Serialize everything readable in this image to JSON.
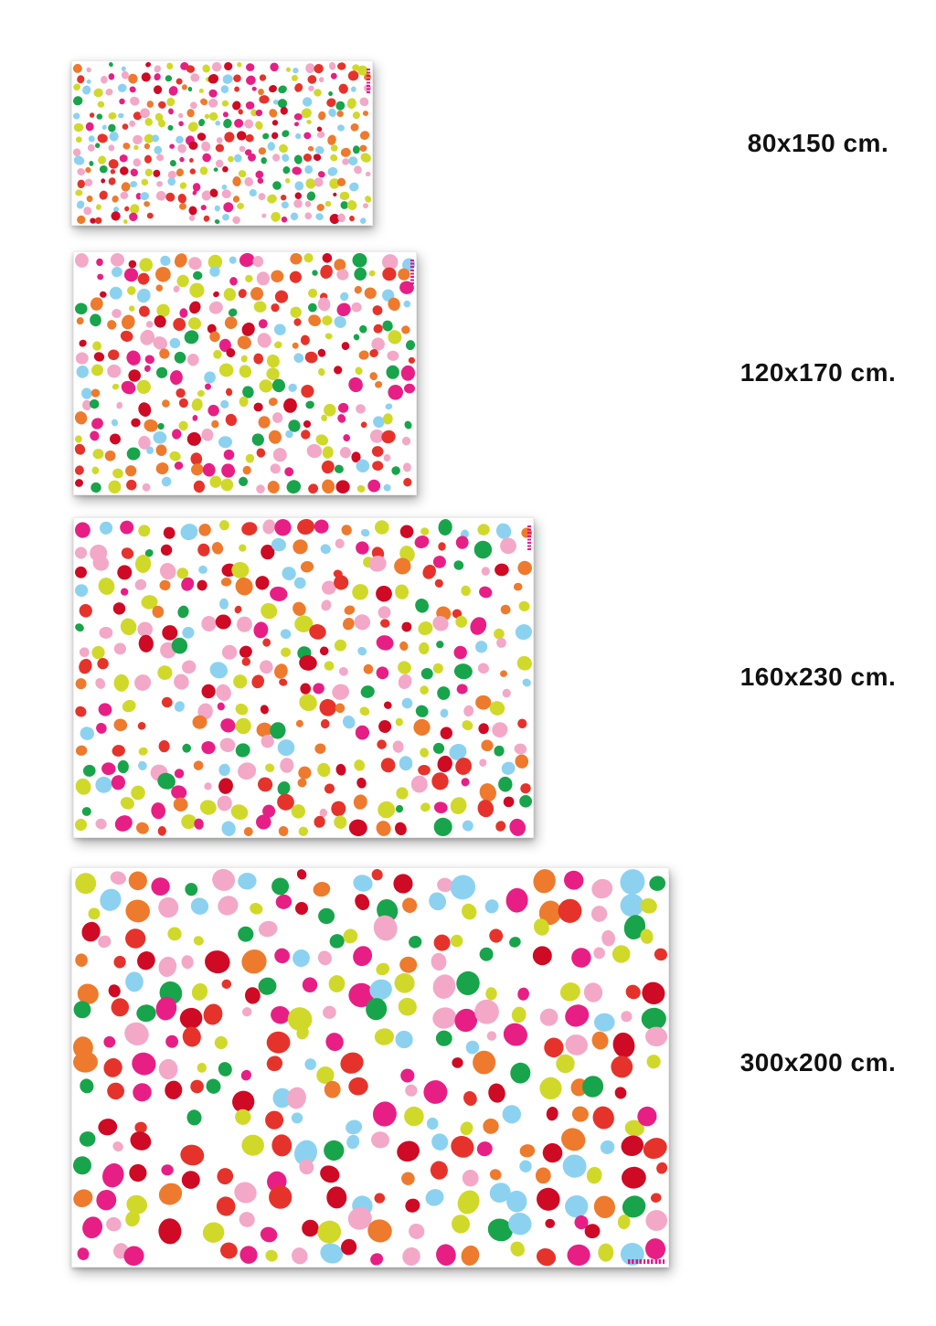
{
  "page": {
    "background": "#ffffff",
    "label_color": "#111111",
    "brand_tag_color": "#e6007e"
  },
  "rugs": [
    {
      "label": "80x150 cm.",
      "size_cm": "80x150",
      "dots": {
        "spacing": 12.4,
        "min_d": 4.5,
        "max_d": 11,
        "skip": 0.1,
        "seed": 101
      },
      "tag": "vertical-top-right"
    },
    {
      "label": "120x170 cm.",
      "size_cm": "120x170",
      "dots": {
        "spacing": 18,
        "min_d": 6.5,
        "max_d": 16,
        "skip": 0.1,
        "seed": 202
      },
      "tag": "vertical-top-right"
    },
    {
      "label": "160x230 cm.",
      "size_cm": "160x230",
      "dots": {
        "spacing": 21.5,
        "min_d": 8,
        "max_d": 19,
        "skip": 0.1,
        "seed": 303
      },
      "tag": "vertical-top-right"
    },
    {
      "label": "300x200 cm.",
      "size_cm": "300x200",
      "dots": {
        "spacing": 29.5,
        "min_d": 10,
        "max_d": 26,
        "skip": 0.1,
        "seed": 404
      },
      "tag": "horizontal-bottom-right"
    }
  ],
  "palette": [
    {
      "name": "red",
      "hex": "#e5332b",
      "weight": 13
    },
    {
      "name": "crimson",
      "hex": "#cf0a24",
      "weight": 8
    },
    {
      "name": "magenta",
      "hex": "#e71f85",
      "weight": 11
    },
    {
      "name": "pink",
      "hex": "#f3a8c8",
      "weight": 16
    },
    {
      "name": "orange",
      "hex": "#ee7a2d",
      "weight": 11
    },
    {
      "name": "green",
      "hex": "#18a44b",
      "weight": 9
    },
    {
      "name": "lime",
      "hex": "#d0d92a",
      "weight": 17
    },
    {
      "name": "sky-blue",
      "hex": "#8cd2f0",
      "weight": 11
    }
  ]
}
